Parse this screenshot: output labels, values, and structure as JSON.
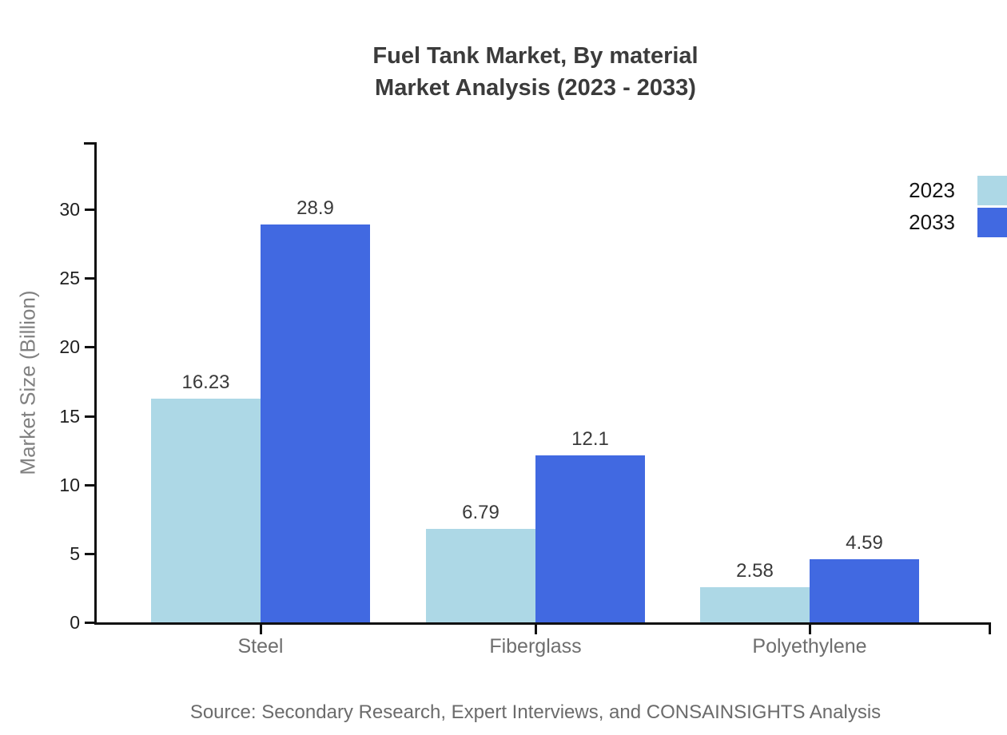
{
  "title": {
    "line1": "Fuel Tank Market, By material",
    "line2": "Market Analysis (2023 - 2033)"
  },
  "source_note": "Source: Secondary Research, Expert Interviews, and CONSAINSIGHTS Analysis",
  "chart_data": {
    "type": "bar",
    "title": "Fuel Tank Market, By material Market Analysis (2023 - 2033)",
    "categories": [
      "Steel",
      "Fiberglass",
      "Polyethylene"
    ],
    "series": [
      {
        "name": "2023",
        "color": "#ADD8E6",
        "values": [
          16.23,
          6.79,
          2.58
        ]
      },
      {
        "name": "2033",
        "color": "#4169E1",
        "values": [
          28.9,
          12.1,
          4.59
        ]
      }
    ],
    "xlabel": "",
    "ylabel": "Market Size (Billion)",
    "yticks": [
      0,
      5,
      10,
      15,
      20,
      25,
      30
    ],
    "ylim": [
      0,
      34.9
    ],
    "grid": false,
    "legend_position": "top-right",
    "value_labels_shown": true
  }
}
